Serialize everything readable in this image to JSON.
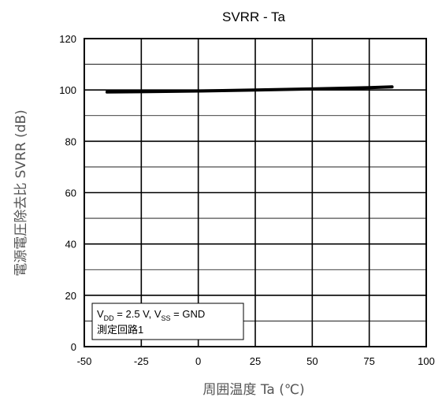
{
  "chart_data": {
    "type": "line",
    "title": "SVRR - Ta",
    "xlabel": "周囲温度 Ta (℃)",
    "ylabel": "電源電圧除去比 SVRR (dB)",
    "xlim": [
      -50,
      100
    ],
    "ylim": [
      0,
      120
    ],
    "x_ticks": [
      -50,
      -25,
      0,
      25,
      50,
      75,
      100
    ],
    "y_ticks": [
      0,
      20,
      40,
      60,
      80,
      100,
      120
    ],
    "x_tick_labels": [
      "-50",
      "-25",
      "0",
      "25",
      "50",
      "75",
      "100"
    ],
    "y_tick_labels": [
      "0",
      "20",
      "40",
      "60",
      "80",
      "100",
      "120"
    ],
    "grid": true,
    "series": [
      {
        "x": [
          -40,
          -25,
          0,
          25,
          50,
          75,
          85
        ],
        "y": [
          99.2,
          99.3,
          99.6,
          100.0,
          100.4,
          100.9,
          101.2
        ],
        "color": "#000000"
      }
    ],
    "annotation": {
      "line1": {
        "v1": "V",
        "v1_sub": "DD",
        "v1_val": " = 2.5 V, ",
        "v2": "V",
        "v2_sub": "SS",
        "v2_val": " = GND"
      },
      "line2": "測定回路1"
    }
  }
}
